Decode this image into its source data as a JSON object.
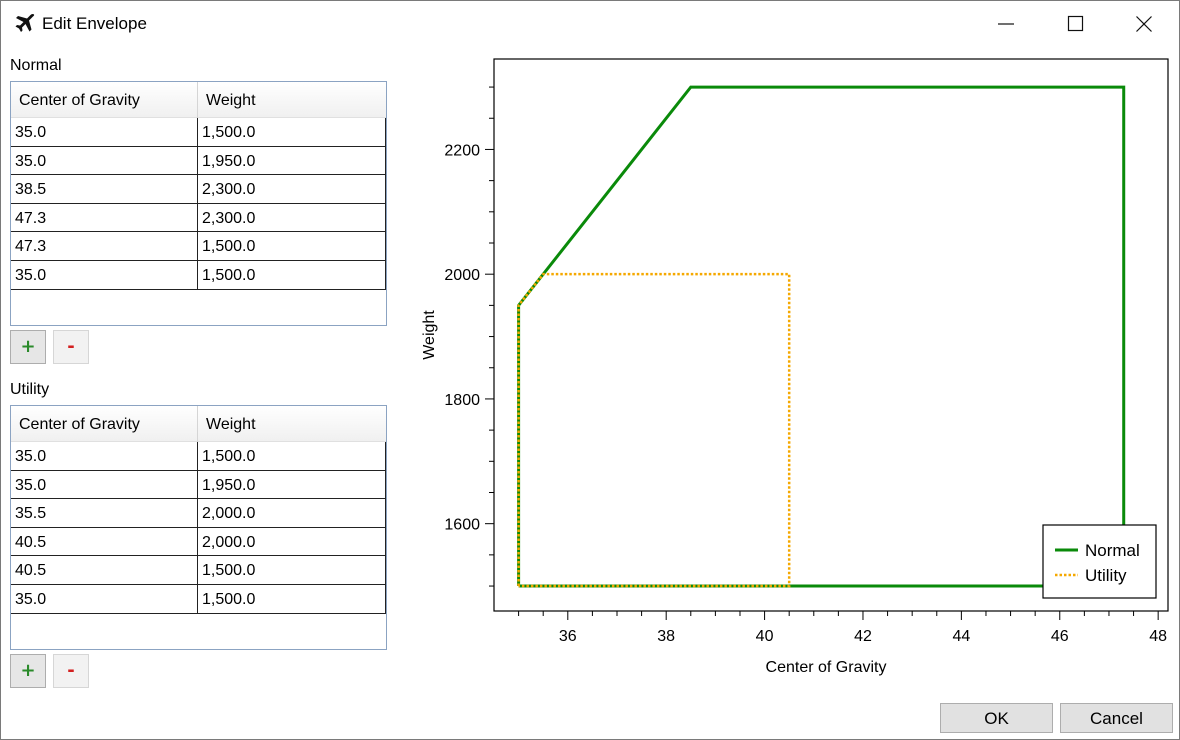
{
  "window": {
    "title": "Edit Envelope",
    "icon": "airplane-icon",
    "controls": [
      "minimize-icon",
      "maximize-icon",
      "close-icon"
    ]
  },
  "normal": {
    "label": "Normal",
    "columns": [
      "Center of Gravity",
      "Weight"
    ],
    "rows": [
      [
        "35.0",
        "1,500.0"
      ],
      [
        "35.0",
        "1,950.0"
      ],
      [
        "38.5",
        "2,300.0"
      ],
      [
        "47.3",
        "2,300.0"
      ],
      [
        "47.3",
        "1,500.0"
      ],
      [
        "35.0",
        "1,500.0"
      ]
    ],
    "add_label": "+",
    "remove_label": "-"
  },
  "utility": {
    "label": "Utility",
    "columns": [
      "Center of Gravity",
      "Weight"
    ],
    "rows": [
      [
        "35.0",
        "1,500.0"
      ],
      [
        "35.0",
        "1,950.0"
      ],
      [
        "35.5",
        "2,000.0"
      ],
      [
        "40.5",
        "2,000.0"
      ],
      [
        "40.5",
        "1,500.0"
      ],
      [
        "35.0",
        "1,500.0"
      ]
    ],
    "add_label": "+",
    "remove_label": "-"
  },
  "buttons": {
    "ok": "OK",
    "cancel": "Cancel"
  },
  "colors": {
    "normal": "#0a8a0a",
    "utility": "#f5a800"
  },
  "chart_data": {
    "type": "line",
    "xlabel": "Center of Gravity",
    "ylabel": "Weight",
    "xlim": [
      34.5,
      48.2
    ],
    "ylim": [
      1460,
      2345
    ],
    "xticks": [
      36,
      38,
      40,
      42,
      44,
      46,
      48
    ],
    "yticks": [
      1600,
      1800,
      2000,
      2200
    ],
    "legend_position": "bottom-right",
    "series": [
      {
        "name": "Normal",
        "style": "solid",
        "x": [
          35.0,
          35.0,
          38.5,
          47.3,
          47.3,
          35.0
        ],
        "y": [
          1500,
          1950,
          2300,
          2300,
          1500,
          1500
        ]
      },
      {
        "name": "Utility",
        "style": "dotted",
        "x": [
          35.0,
          35.0,
          35.5,
          40.5,
          40.5,
          35.0
        ],
        "y": [
          1500,
          1950,
          2000,
          2000,
          1500,
          1500
        ]
      }
    ]
  }
}
